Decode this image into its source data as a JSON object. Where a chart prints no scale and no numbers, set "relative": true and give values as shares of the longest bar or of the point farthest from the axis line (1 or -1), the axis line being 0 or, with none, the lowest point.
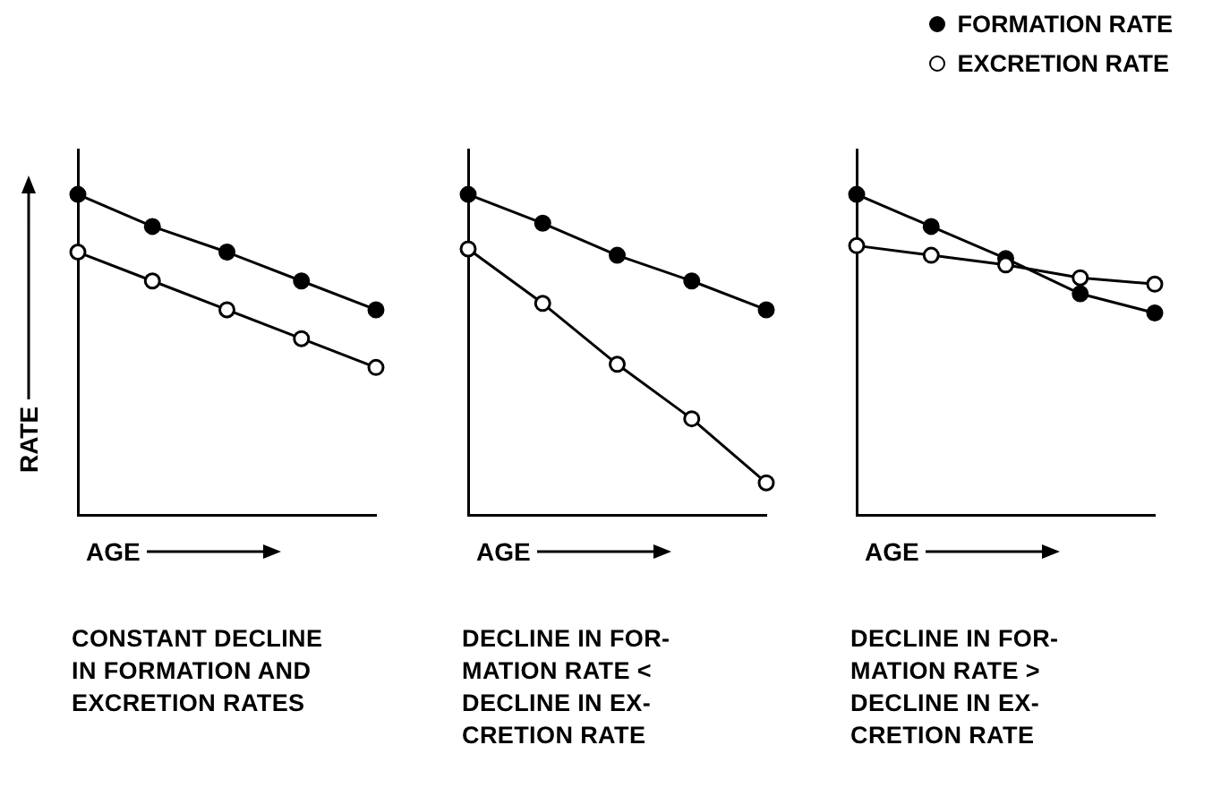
{
  "chart_data": [
    {
      "type": "line",
      "relative": true,
      "xlabel": "AGE",
      "ylabel": "RATE",
      "categories": [
        null,
        null,
        null,
        null,
        null
      ],
      "marker": "circle",
      "legend": false,
      "grid": false,
      "annotations": [
        "CONSTANT DECLINE\nIN FORMATION AND\nEXCRETION RATES"
      ],
      "series": [
        {
          "color": "#000000",
          "values": [
            1,
            0.9,
            0.82,
            0.73,
            0.64
          ]
        },
        {
          "color": "#000000",
          "values": [
            0.82,
            0.73,
            0.64,
            0.55,
            0.46
          ]
        }
      ]
    },
    {
      "type": "line",
      "relative": true,
      "xlabel": "AGE",
      "categories": [
        null,
        null,
        null,
        null,
        null
      ],
      "marker": "circle",
      "legend": false,
      "grid": false,
      "annotations": [
        "DECLINE IN FOR-\nMATION RATE <\nDECLINE IN EX-\nCRETION RATE"
      ],
      "series": [
        {
          "color": "#000000",
          "values": [
            1,
            0.91,
            0.81,
            0.73,
            0.64
          ]
        },
        {
          "color": "#000000",
          "values": [
            0.83,
            0.66,
            0.47,
            0.3,
            0.1
          ]
        }
      ]
    },
    {
      "type": "line",
      "relative": true,
      "xlabel": "AGE",
      "categories": [
        null,
        null,
        null,
        null,
        null
      ],
      "marker": "circle",
      "legend": "top right",
      "grid": false,
      "annotations": [
        "DECLINE IN FOR-\nMATION RATE >\nDECLINE IN EX-\nCRETION RATE"
      ],
      "series": [
        {
          "name": "FORMATION RATE",
          "color": "#000000",
          "values": [
            1,
            0.9,
            0.8,
            0.69,
            0.63
          ]
        },
        {
          "name": "EXCRETION RATE",
          "color": "#000000",
          "values": [
            0.84,
            0.81,
            0.78,
            0.74,
            0.72
          ]
        }
      ]
    }
  ]
}
